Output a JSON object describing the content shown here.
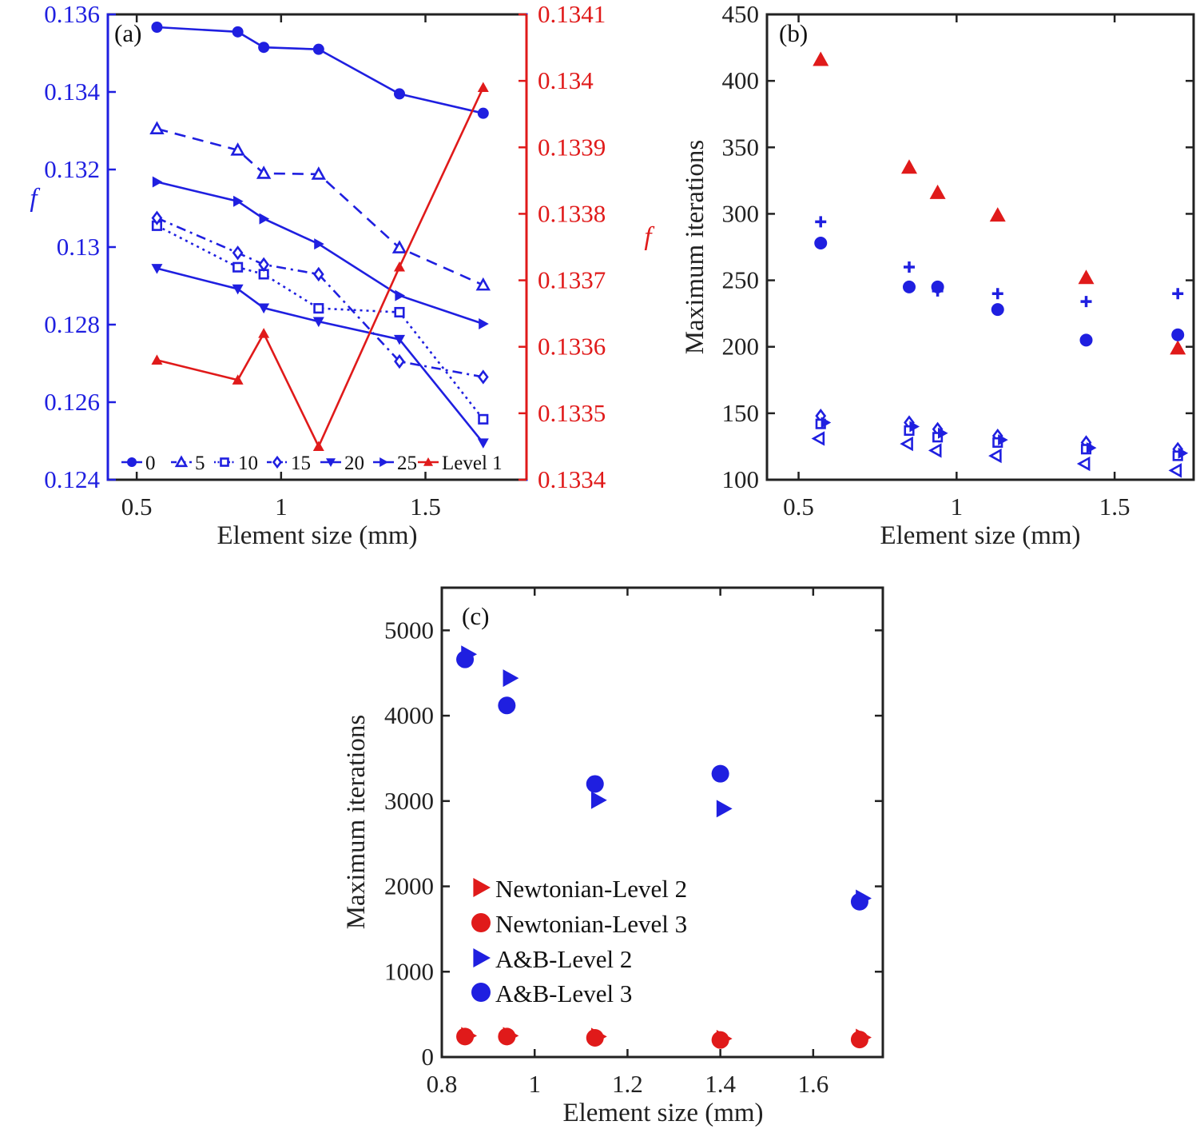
{
  "colors": {
    "blue": "#1f1fe0",
    "red": "#e01a1a",
    "axis": "#222222"
  },
  "chart_data": [
    {
      "id": "a",
      "panel_label": "(a)",
      "type": "line",
      "xlabel": "Element size (mm)",
      "ylabel": "f",
      "ylabel_right": "f",
      "xlim": [
        0.4,
        1.85
      ],
      "ylim": [
        0.124,
        0.136
      ],
      "ylim_right": [
        0.1334,
        0.1341
      ],
      "xticks": [
        0.5,
        1,
        1.5
      ],
      "xtick_labels": [
        "0.5",
        "1",
        "1.5"
      ],
      "yticks": [
        0.124,
        0.126,
        0.128,
        0.13,
        0.132,
        0.134,
        0.136
      ],
      "ytick_labels": [
        "0.124",
        "0.126",
        "0.128",
        "0.13",
        "0.132",
        "0.134",
        "0.136"
      ],
      "yticks_right": [
        0.1334,
        0.1335,
        0.1336,
        0.1337,
        0.1338,
        0.1339,
        0.134,
        0.1341
      ],
      "ytick_labels_right": [
        "0.1334",
        "0.1335",
        "0.1336",
        "0.1337",
        "0.1338",
        "0.1339",
        "0.134",
        "0.1341"
      ],
      "x": [
        0.57,
        0.85,
        0.94,
        1.13,
        1.41,
        1.7
      ],
      "series": [
        {
          "name": "0",
          "axis": "left",
          "color": "blue",
          "marker": "circle-filled",
          "dash": "solid",
          "values": [
            0.13567,
            0.13555,
            0.13515,
            0.1351,
            0.13395,
            0.13345
          ]
        },
        {
          "name": "5",
          "axis": "left",
          "color": "blue",
          "marker": "triangle-up-open",
          "dash": "dashed",
          "values": [
            0.13305,
            0.1325,
            0.1319,
            0.13188,
            0.12998,
            0.12902
          ]
        },
        {
          "name": "10",
          "axis": "left",
          "color": "blue",
          "marker": "square-open",
          "dash": "dotted",
          "values": [
            0.13055,
            0.12948,
            0.1293,
            0.12842,
            0.12832,
            0.12556
          ]
        },
        {
          "name": "15",
          "axis": "left",
          "color": "blue",
          "marker": "diamond-open",
          "dash": "dashdot",
          "values": [
            0.13075,
            0.12985,
            0.12955,
            0.1293,
            0.12705,
            0.12665
          ]
        },
        {
          "name": "20",
          "axis": "left",
          "color": "blue",
          "marker": "triangle-down-filled",
          "dash": "solid",
          "values": [
            0.12945,
            0.12892,
            0.12843,
            0.12808,
            0.12762,
            0.12495
          ]
        },
        {
          "name": "25",
          "axis": "left",
          "color": "blue",
          "marker": "triangle-right-filled",
          "dash": "solid",
          "values": [
            0.13168,
            0.13118,
            0.13073,
            0.13008,
            0.12875,
            0.12802
          ]
        },
        {
          "name": "Level 1",
          "axis": "right",
          "color": "red",
          "marker": "triangle-up-filled",
          "dash": "solid",
          "values": [
            0.13358,
            0.13355,
            0.13362,
            0.13345,
            0.13372,
            0.13399
          ]
        }
      ],
      "legend": [
        "0",
        "5",
        "10",
        "15",
        "20",
        "25",
        "Level 1"
      ],
      "legend_position": "bottom"
    },
    {
      "id": "b",
      "panel_label": "(b)",
      "type": "scatter",
      "xlabel": "Element size (mm)",
      "ylabel": "Maximum iterations",
      "xlim": [
        0.4,
        1.75
      ],
      "ylim": [
        100,
        450
      ],
      "xticks": [
        0.5,
        1,
        1.5
      ],
      "xtick_labels": [
        "0.5",
        "1",
        "1.5"
      ],
      "yticks": [
        100,
        150,
        200,
        250,
        300,
        350,
        400,
        450
      ],
      "ytick_labels": [
        "100",
        "150",
        "200",
        "250",
        "300",
        "350",
        "400",
        "450"
      ],
      "x": [
        0.57,
        0.85,
        0.94,
        1.13,
        1.41,
        1.7
      ],
      "series": [
        {
          "name": "red triangles",
          "color": "red",
          "marker": "triangle-up-filled",
          "values": [
            416,
            335,
            316,
            299,
            252,
            199
          ]
        },
        {
          "name": "plus",
          "color": "blue",
          "marker": "plus",
          "values": [
            294,
            260,
            242,
            240,
            234,
            240
          ]
        },
        {
          "name": "circles",
          "color": "blue",
          "marker": "circle-filled",
          "values": [
            278,
            245,
            245,
            228,
            205,
            209
          ]
        },
        {
          "name": "diamonds",
          "color": "blue",
          "marker": "diamond-open",
          "values": [
            148,
            143,
            138,
            133,
            128,
            123
          ]
        },
        {
          "name": "squares",
          "color": "blue",
          "marker": "square-open",
          "values": [
            142,
            137,
            132,
            128,
            123,
            118
          ]
        },
        {
          "name": "right triangles",
          "color": "blue",
          "marker": "triangle-right-filled",
          "values": [
            143,
            140,
            135,
            130,
            124,
            120
          ]
        },
        {
          "name": "left triangles",
          "color": "blue",
          "marker": "triangle-left-open",
          "values": [
            131,
            127,
            122,
            118,
            112,
            107
          ]
        }
      ]
    },
    {
      "id": "c",
      "panel_label": "(c)",
      "type": "scatter",
      "xlabel": "Element size (mm)",
      "ylabel": "Maximum iterations",
      "xlim": [
        0.8,
        1.75
      ],
      "ylim": [
        0,
        5500
      ],
      "xticks": [
        0.8,
        1.0,
        1.2,
        1.4,
        1.6
      ],
      "xtick_labels": [
        "0.8",
        "1",
        "1.2",
        "1.4",
        "1.6"
      ],
      "yticks": [
        0,
        1000,
        2000,
        3000,
        4000,
        5000
      ],
      "ytick_labels": [
        "0",
        "1000",
        "2000",
        "3000",
        "4000",
        "5000"
      ],
      "x": [
        0.85,
        0.94,
        1.13,
        1.4,
        1.7
      ],
      "series": [
        {
          "name": "Newtonian-Level 2",
          "color": "red",
          "marker": "triangle-right-filled",
          "values": [
            250,
            250,
            240,
            215,
            230
          ]
        },
        {
          "name": "Newtonian-Level 3",
          "color": "red",
          "marker": "circle-filled",
          "values": [
            240,
            240,
            225,
            200,
            205
          ]
        },
        {
          "name": "A&B-Level 2",
          "color": "blue",
          "marker": "triangle-right-filled",
          "values": [
            4720,
            4440,
            3010,
            2910,
            1860
          ]
        },
        {
          "name": "A&B-Level 3",
          "color": "blue",
          "marker": "circle-filled",
          "values": [
            4660,
            4120,
            3200,
            3320,
            1820
          ]
        }
      ],
      "legend": [
        "Newtonian-Level 2",
        "Newtonian-Level 3",
        "A&B-Level 2",
        "A&B-Level 3"
      ],
      "legend_position": "bottom-left"
    }
  ]
}
